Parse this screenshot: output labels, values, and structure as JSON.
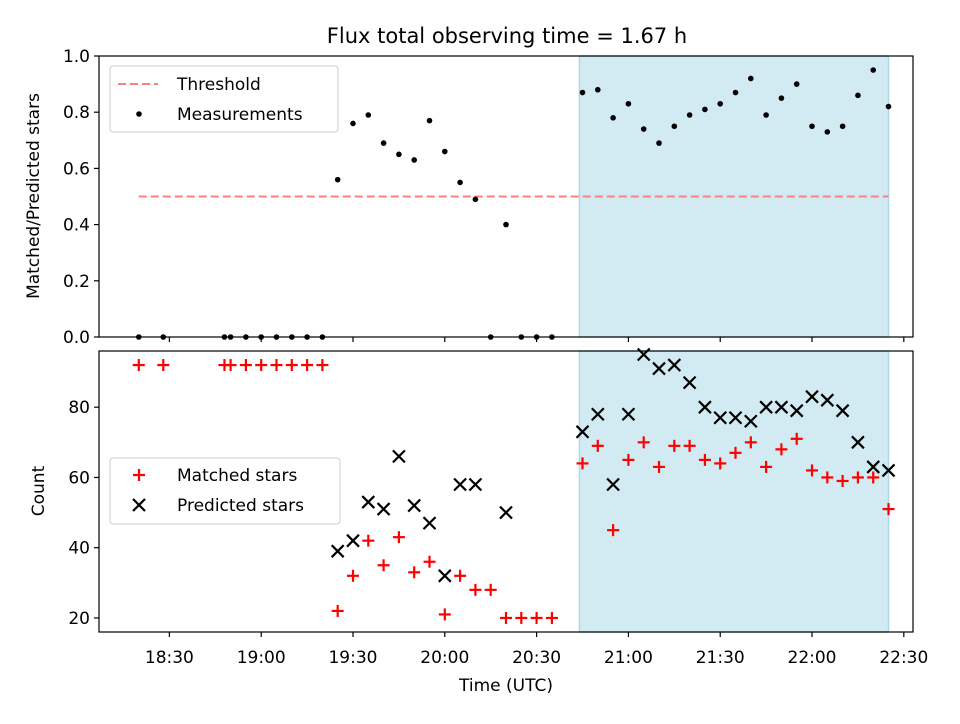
{
  "figure": {
    "title": "Flux total observing time = 1.67 h",
    "xlabel": "Time (UTC)",
    "x_tick_labels": [
      "18:30",
      "19:00",
      "19:30",
      "20:00",
      "20:30",
      "21:00",
      "21:30",
      "22:00",
      "22:30"
    ]
  },
  "top_panel": {
    "ylabel": "Matched/Predicted stars",
    "y_tick_labels": [
      "0.0",
      "0.2",
      "0.4",
      "0.6",
      "0.8",
      "1.0"
    ],
    "legend": {
      "threshold_label": "Threshold",
      "measurements_label": "Measurements"
    }
  },
  "bottom_panel": {
    "ylabel": "Count",
    "y_tick_labels": [
      "20",
      "40",
      "60",
      "80"
    ],
    "legend": {
      "matched_label": "Matched stars",
      "predicted_label": "Predicted stars"
    }
  },
  "chart_data": [
    {
      "type": "scatter",
      "title": "Flux total observing time = 1.67 h",
      "xlabel": "",
      "ylabel": "Matched/Predicted stars",
      "xlim": [
        "18:07",
        "22:33"
      ],
      "ylim": [
        0.0,
        1.0
      ],
      "x_ticks": [
        "18:30",
        "19:00",
        "19:30",
        "20:00",
        "20:30",
        "21:00",
        "21:30",
        "22:00",
        "22:30"
      ],
      "y_ticks": [
        0.0,
        0.2,
        0.4,
        0.6,
        0.8,
        1.0
      ],
      "legend_position": "top-left",
      "shaded_region": {
        "x_start": "20:44",
        "x_end": "22:25",
        "color": "#add8e6"
      },
      "threshold": {
        "name": "Threshold",
        "y": 0.5,
        "x_start": "18:20",
        "x_end": "22:25",
        "color": "#ff7f7f",
        "style": "dashed"
      },
      "series": [
        {
          "name": "Measurements",
          "color": "#000000",
          "marker": "dot",
          "points": [
            [
              "18:20",
              0.0
            ],
            [
              "18:28",
              0.0
            ],
            [
              "18:48",
              0.0
            ],
            [
              "18:50",
              0.0
            ],
            [
              "18:55",
              0.0
            ],
            [
              "19:00",
              0.0
            ],
            [
              "19:05",
              0.0
            ],
            [
              "19:10",
              0.0
            ],
            [
              "19:15",
              0.0
            ],
            [
              "19:20",
              0.0
            ],
            [
              "19:25",
              0.56
            ],
            [
              "19:30",
              0.76
            ],
            [
              "19:35",
              0.79
            ],
            [
              "19:40",
              0.69
            ],
            [
              "19:45",
              0.65
            ],
            [
              "19:50",
              0.63
            ],
            [
              "19:55",
              0.77
            ],
            [
              "20:00",
              0.66
            ],
            [
              "20:05",
              0.55
            ],
            [
              "20:10",
              0.49
            ],
            [
              "20:15",
              0.0
            ],
            [
              "20:20",
              0.4
            ],
            [
              "20:25",
              0.0
            ],
            [
              "20:30",
              0.0
            ],
            [
              "20:35",
              0.0
            ],
            [
              "20:45",
              0.87
            ],
            [
              "20:50",
              0.88
            ],
            [
              "20:55",
              0.78
            ],
            [
              "21:00",
              0.83
            ],
            [
              "21:05",
              0.74
            ],
            [
              "21:10",
              0.69
            ],
            [
              "21:15",
              0.75
            ],
            [
              "21:20",
              0.79
            ],
            [
              "21:25",
              0.81
            ],
            [
              "21:30",
              0.83
            ],
            [
              "21:35",
              0.87
            ],
            [
              "21:40",
              0.92
            ],
            [
              "21:45",
              0.79
            ],
            [
              "21:50",
              0.85
            ],
            [
              "21:55",
              0.9
            ],
            [
              "22:00",
              0.75
            ],
            [
              "22:05",
              0.73
            ],
            [
              "22:10",
              0.75
            ],
            [
              "22:15",
              0.86
            ],
            [
              "22:20",
              0.95
            ],
            [
              "22:25",
              0.82
            ]
          ]
        }
      ]
    },
    {
      "type": "scatter",
      "title": "",
      "xlabel": "Time (UTC)",
      "ylabel": "Count",
      "xlim": [
        "18:07",
        "22:33"
      ],
      "ylim": [
        16,
        96
      ],
      "x_ticks": [
        "18:30",
        "19:00",
        "19:30",
        "20:00",
        "20:30",
        "21:00",
        "21:30",
        "22:00",
        "22:30"
      ],
      "y_ticks": [
        20,
        40,
        60,
        80
      ],
      "legend_position": "center-left",
      "shaded_region": {
        "x_start": "20:44",
        "x_end": "22:25",
        "color": "#add8e6"
      },
      "series": [
        {
          "name": "Matched stars",
          "color": "#ff0000",
          "marker": "plus",
          "points": [
            [
              "18:20",
              92
            ],
            [
              "18:28",
              92
            ],
            [
              "18:48",
              92
            ],
            [
              "18:50",
              92
            ],
            [
              "18:55",
              92
            ],
            [
              "19:00",
              92
            ],
            [
              "19:05",
              92
            ],
            [
              "19:10",
              92
            ],
            [
              "19:15",
              92
            ],
            [
              "19:20",
              92
            ],
            [
              "19:25",
              22
            ],
            [
              "19:30",
              32
            ],
            [
              "19:35",
              42
            ],
            [
              "19:40",
              35
            ],
            [
              "19:45",
              43
            ],
            [
              "19:50",
              33
            ],
            [
              "19:55",
              36
            ],
            [
              "20:00",
              21
            ],
            [
              "20:05",
              32
            ],
            [
              "20:10",
              28
            ],
            [
              "20:15",
              28
            ],
            [
              "20:20",
              20
            ],
            [
              "20:25",
              20
            ],
            [
              "20:30",
              20
            ],
            [
              "20:35",
              20
            ],
            [
              "20:45",
              64
            ],
            [
              "20:50",
              69
            ],
            [
              "20:55",
              45
            ],
            [
              "21:00",
              65
            ],
            [
              "21:05",
              70
            ],
            [
              "21:10",
              63
            ],
            [
              "21:15",
              69
            ],
            [
              "21:20",
              69
            ],
            [
              "21:25",
              65
            ],
            [
              "21:30",
              64
            ],
            [
              "21:35",
              67
            ],
            [
              "21:40",
              70
            ],
            [
              "21:45",
              63
            ],
            [
              "21:50",
              68
            ],
            [
              "21:55",
              71
            ],
            [
              "22:00",
              62
            ],
            [
              "22:05",
              60
            ],
            [
              "22:10",
              59
            ],
            [
              "22:15",
              60
            ],
            [
              "22:20",
              60
            ],
            [
              "22:25",
              51
            ]
          ]
        },
        {
          "name": "Predicted stars",
          "color": "#000000",
          "marker": "x",
          "points": [
            [
              "19:25",
              39
            ],
            [
              "19:30",
              42
            ],
            [
              "19:35",
              53
            ],
            [
              "19:40",
              51
            ],
            [
              "19:45",
              66
            ],
            [
              "19:50",
              52
            ],
            [
              "19:55",
              47
            ],
            [
              "20:00",
              32
            ],
            [
              "20:05",
              58
            ],
            [
              "20:10",
              58
            ],
            [
              "20:20",
              50
            ],
            [
              "20:45",
              73
            ],
            [
              "20:50",
              78
            ],
            [
              "20:55",
              58
            ],
            [
              "21:00",
              78
            ],
            [
              "21:05",
              95
            ],
            [
              "21:10",
              91
            ],
            [
              "21:15",
              92
            ],
            [
              "21:20",
              87
            ],
            [
              "21:25",
              80
            ],
            [
              "21:30",
              77
            ],
            [
              "21:35",
              77
            ],
            [
              "21:40",
              76
            ],
            [
              "21:45",
              80
            ],
            [
              "21:50",
              80
            ],
            [
              "21:55",
              79
            ],
            [
              "22:00",
              83
            ],
            [
              "22:05",
              82
            ],
            [
              "22:10",
              79
            ],
            [
              "22:15",
              70
            ],
            [
              "22:20",
              63
            ],
            [
              "22:25",
              62
            ]
          ]
        }
      ]
    }
  ]
}
